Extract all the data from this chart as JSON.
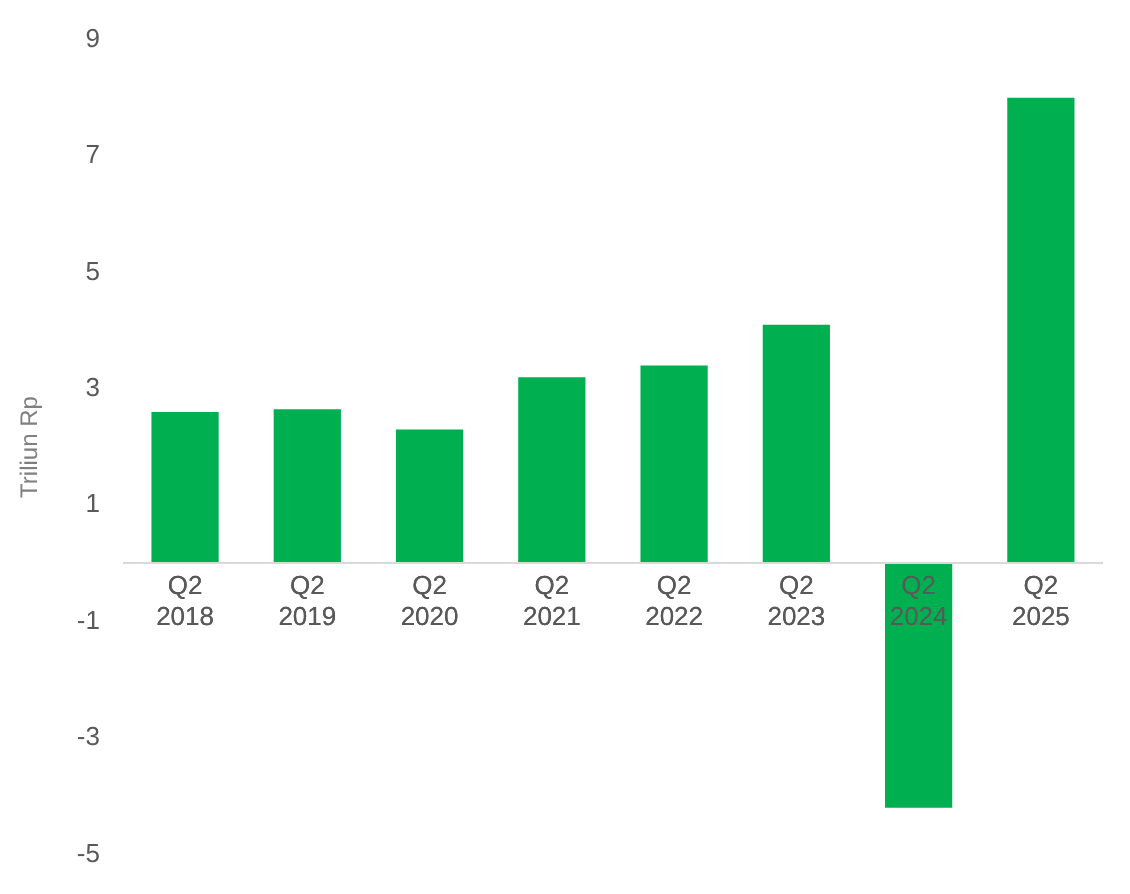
{
  "chart_data": {
    "type": "bar",
    "ylabel": "Triliun Rp",
    "categories": [
      "Q2 2018",
      "Q2 2019",
      "Q2 2020",
      "Q2 2021",
      "Q2 2022",
      "Q2 2023",
      "Q2 2024",
      "Q2 2025"
    ],
    "values": [
      2.6,
      2.65,
      2.3,
      3.2,
      3.4,
      4.1,
      -4.2,
      8.0
    ],
    "color": "#00b050",
    "ylim": [
      -5,
      9
    ],
    "yticks": [
      9,
      7,
      5,
      3,
      1,
      -1,
      -3,
      -5
    ],
    "grid": false,
    "legend": false
  }
}
